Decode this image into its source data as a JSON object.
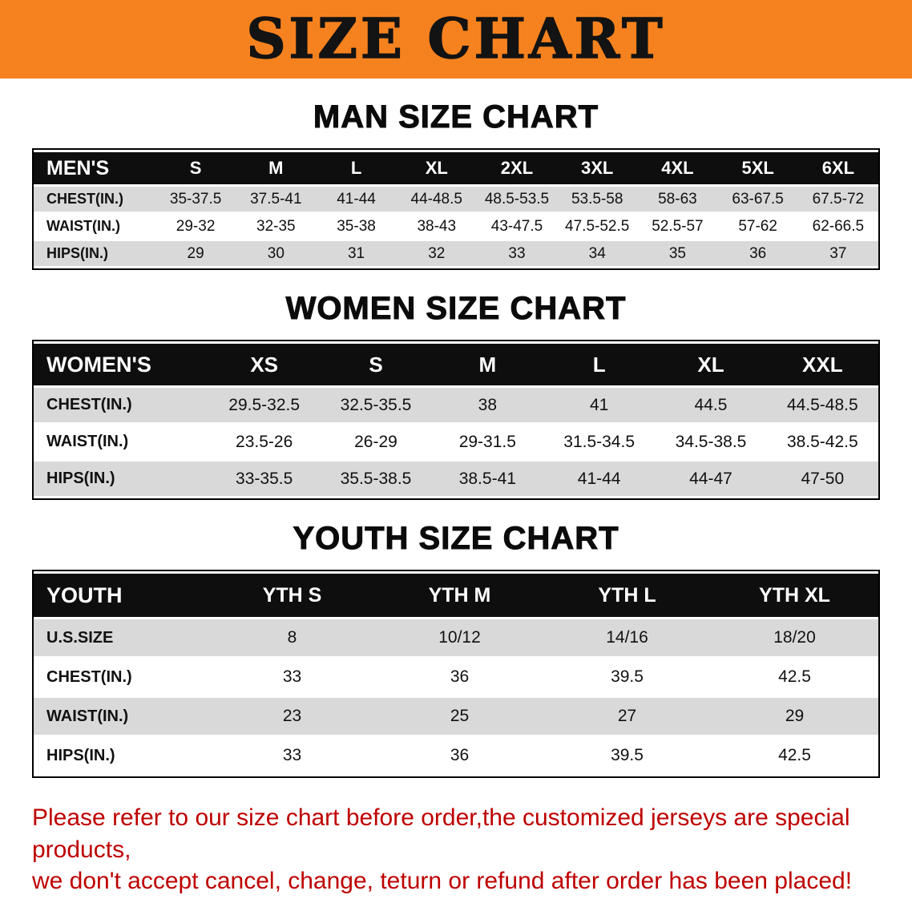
{
  "banner": {
    "title": "SIZE CHART"
  },
  "theme": {
    "banner_bg": "#F6821F",
    "row_gray": "#D9D9D9",
    "header_black": "#0E0E0E",
    "footer_red": "#BE0000"
  },
  "chart_data": [
    {
      "type": "table",
      "title": "MAN SIZE CHART",
      "columns": [
        "MEN'S",
        "S",
        "M",
        "L",
        "XL",
        "2XL",
        "3XL",
        "4XL",
        "5XL",
        "6XL"
      ],
      "rows": [
        [
          "CHEST(IN.)",
          "35-37.5",
          "37.5-41",
          "41-44",
          "44-48.5",
          "48.5-53.5",
          "53.5-58",
          "58-63",
          "63-67.5",
          "67.5-72"
        ],
        [
          "WAIST(IN.)",
          "29-32",
          "32-35",
          "35-38",
          "38-43",
          "43-47.5",
          "47.5-52.5",
          "52.5-57",
          "57-62",
          "62-66.5"
        ],
        [
          "HIPS(IN.)",
          "29",
          "30",
          "31",
          "32",
          "33",
          "34",
          "35",
          "36",
          "37"
        ]
      ]
    },
    {
      "type": "table",
      "title": "WOMEN SIZE CHART",
      "columns": [
        "WOMEN'S",
        "XS",
        "S",
        "M",
        "L",
        "XL",
        "XXL"
      ],
      "rows": [
        [
          "CHEST(IN.)",
          "29.5-32.5",
          "32.5-35.5",
          "38",
          "41",
          "44.5",
          "44.5-48.5"
        ],
        [
          "WAIST(IN.)",
          "23.5-26",
          "26-29",
          "29-31.5",
          "31.5-34.5",
          "34.5-38.5",
          "38.5-42.5"
        ],
        [
          "HIPS(IN.)",
          "33-35.5",
          "35.5-38.5",
          "38.5-41",
          "41-44",
          "44-47",
          "47-50"
        ]
      ]
    },
    {
      "type": "table",
      "title": "YOUTH SIZE CHART",
      "columns": [
        "YOUTH",
        "YTH S",
        "YTH M",
        "YTH L",
        "YTH XL"
      ],
      "rows": [
        [
          "U.S.SIZE",
          "8",
          "10/12",
          "14/16",
          "18/20"
        ],
        [
          "CHEST(IN.)",
          "33",
          "36",
          "39.5",
          "42.5"
        ],
        [
          "WAIST(IN.)",
          "23",
          "25",
          "27",
          "29"
        ],
        [
          "HIPS(IN.)",
          "33",
          "36",
          "39.5",
          "42.5"
        ]
      ]
    }
  ],
  "footer": {
    "line1": "Please refer to our size chart before order,the customized jerseys are special products,",
    "line2": "we don't accept cancel, change, teturn or refund after order has been placed!"
  }
}
